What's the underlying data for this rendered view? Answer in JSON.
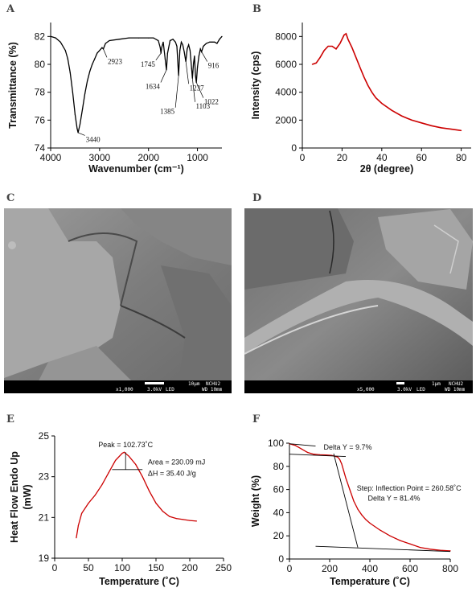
{
  "panels": {
    "A": "A",
    "B": "B",
    "C": "C",
    "D": "D",
    "E": "E",
    "F": "F"
  },
  "chart_data": [
    {
      "id": "A",
      "type": "line",
      "xlabel": "Wavenumber (cm⁻¹)",
      "ylabel": "Transmittance (%)",
      "xlim": [
        4000,
        500
      ],
      "ylim": [
        74,
        83
      ],
      "xticks": [
        4000,
        3000,
        2000,
        1000
      ],
      "yticks": [
        74,
        76,
        78,
        80,
        82
      ],
      "color": "#000000",
      "series": [
        {
          "x": [
            4000,
            3900,
            3800,
            3700,
            3650,
            3600,
            3550,
            3500,
            3460,
            3440,
            3400,
            3350,
            3300,
            3250,
            3200,
            3150,
            3100,
            3050,
            3000,
            2950,
            2923,
            2880,
            2800,
            2600,
            2400,
            2200,
            2000,
            1900,
            1800,
            1760,
            1745,
            1730,
            1700,
            1660,
            1634,
            1610,
            1560,
            1500,
            1450,
            1420,
            1385,
            1360,
            1330,
            1300,
            1270,
            1237,
            1210,
            1180,
            1150,
            1120,
            1103,
            1080,
            1060,
            1040,
            1022,
            1000,
            970,
            940,
            916,
            880,
            820,
            750,
            700,
            650,
            600,
            550,
            500
          ],
          "y": [
            82.0,
            81.9,
            81.6,
            81.0,
            80.4,
            79.4,
            78.0,
            76.4,
            75.4,
            75.1,
            75.7,
            76.8,
            77.9,
            78.8,
            79.5,
            80.0,
            80.4,
            80.8,
            81.0,
            81.2,
            81.1,
            81.5,
            81.7,
            81.8,
            81.9,
            81.9,
            81.9,
            81.9,
            81.7,
            81.2,
            80.8,
            81.2,
            81.6,
            80.4,
            79.6,
            80.8,
            81.7,
            81.8,
            81.6,
            81.3,
            79.2,
            81.0,
            81.6,
            81.4,
            80.9,
            80.2,
            81.1,
            81.4,
            81.0,
            79.7,
            79.0,
            80.1,
            80.6,
            79.2,
            78.7,
            79.8,
            80.6,
            81.1,
            80.9,
            81.3,
            81.5,
            81.6,
            81.6,
            81.6,
            81.5,
            81.8,
            82.0
          ]
        }
      ],
      "annotations": [
        "3440",
        "2923",
        "1745",
        "1634",
        "1385",
        "1237",
        "1103",
        "1022",
        "916"
      ]
    },
    {
      "id": "B",
      "type": "line",
      "xlabel": "2θ (degree)",
      "ylabel": "Intensity (cps)",
      "xlim": [
        0,
        85
      ],
      "ylim": [
        0,
        9000
      ],
      "xticks": [
        0,
        20,
        40,
        60,
        80
      ],
      "yticks": [
        0,
        2000,
        4000,
        6000,
        8000
      ],
      "color": "#cc0000",
      "series": [
        {
          "x": [
            5,
            7,
            9,
            11,
            13,
            15,
            17,
            19,
            21,
            22,
            23,
            25,
            27,
            29,
            31,
            33,
            35,
            37,
            40,
            45,
            50,
            55,
            60,
            65,
            70,
            75,
            80
          ],
          "y": [
            6000,
            6100,
            6500,
            7000,
            7300,
            7300,
            7100,
            7500,
            8100,
            8200,
            7800,
            7200,
            6500,
            5800,
            5100,
            4500,
            4000,
            3600,
            3200,
            2700,
            2300,
            2000,
            1800,
            1600,
            1450,
            1350,
            1250
          ]
        }
      ]
    },
    {
      "id": "E",
      "type": "line",
      "xlabel": "Temperature (˚C)",
      "ylabel": "Heat Flow Endo Up (mW)",
      "xlim": [
        0,
        250
      ],
      "ylim": [
        19,
        25
      ],
      "xticks": [
        0,
        50,
        100,
        150,
        200,
        250
      ],
      "yticks": [
        19,
        21,
        23,
        25
      ],
      "color": "#cc0000",
      "series": [
        {
          "x": [
            32,
            35,
            40,
            50,
            60,
            70,
            80,
            90,
            100,
            103,
            110,
            120,
            130,
            140,
            150,
            160,
            170,
            180,
            190,
            200,
            210
          ],
          "y": [
            20.0,
            20.6,
            21.2,
            21.7,
            22.1,
            22.6,
            23.2,
            23.8,
            24.15,
            24.2,
            24.0,
            23.6,
            23.0,
            22.3,
            21.7,
            21.3,
            21.05,
            20.95,
            20.9,
            20.85,
            20.82
          ]
        }
      ],
      "annotations": {
        "peak": "Peak = 102.73˚C",
        "area": "Area = 230.09 mJ",
        "dh": "ΔH = 35.40 J/g"
      }
    },
    {
      "id": "F",
      "type": "line",
      "xlabel": "Temperature (˚C)",
      "ylabel": "Weight (%)",
      "xlim": [
        0,
        800
      ],
      "ylim": [
        0,
        100
      ],
      "xticks": [
        0,
        200,
        400,
        600,
        800
      ],
      "yticks": [
        0,
        20,
        40,
        60,
        80,
        100
      ],
      "color": "#cc0000",
      "series": [
        {
          "x": [
            0,
            30,
            60,
            90,
            120,
            150,
            180,
            210,
            240,
            250,
            260,
            270,
            280,
            300,
            320,
            340,
            360,
            380,
            400,
            450,
            500,
            550,
            600,
            650,
            700,
            750,
            800
          ],
          "y": [
            99.5,
            98,
            95,
            92,
            90.5,
            90,
            89.8,
            89.5,
            88,
            86,
            82,
            76,
            70,
            60,
            50,
            43,
            38,
            34,
            31,
            25,
            20,
            16,
            13,
            10,
            8.5,
            7.5,
            7
          ]
        }
      ],
      "annotations": {
        "delta1": "Delta Y = 9.7%",
        "step": "Step: Inflection Point = 260.58˚C",
        "delta2": "Delta Y = 81.4%"
      }
    }
  ],
  "sem": {
    "C": {
      "scale_label": "10μm",
      "lab": "NCHU2",
      "mag": "x1,000",
      "kv": "3.0kV",
      "det": "LED",
      "wd": "WD 10mm"
    },
    "D": {
      "scale_label": "1μm",
      "lab": "NCHU2",
      "mag": "x5,000",
      "kv": "3.0kV",
      "det": "LED",
      "wd": "WD 10mm"
    }
  }
}
